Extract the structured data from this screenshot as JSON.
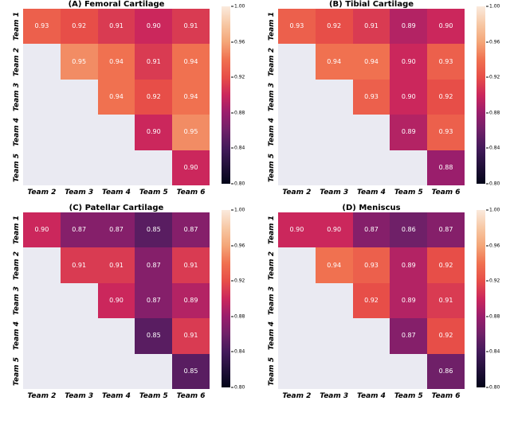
{
  "figure": {
    "background_color": "#ffffff",
    "empty_cell_color": "#EAEAF2",
    "cell_text_color": "#ffffff",
    "label_text_color": "#000000"
  },
  "colormap_stops": [
    {
      "v": 0.8,
      "c": "#030519"
    },
    {
      "v": 0.82,
      "c": "#22103A"
    },
    {
      "v": 0.84,
      "c": "#431A5A"
    },
    {
      "v": 0.86,
      "c": "#6F2068"
    },
    {
      "v": 0.88,
      "c": "#9A1E6C"
    },
    {
      "v": 0.9,
      "c": "#CB275C"
    },
    {
      "v": 0.92,
      "c": "#E74E48"
    },
    {
      "v": 0.94,
      "c": "#F07150"
    },
    {
      "v": 0.96,
      "c": "#F4A678"
    },
    {
      "v": 0.98,
      "c": "#F7C8A5"
    },
    {
      "v": 1.0,
      "c": "#FAEADD"
    }
  ],
  "chart_data": [
    {
      "type": "heatmap",
      "title": "(A) Femoral Cartilage",
      "x_categories": [
        "Team 2",
        "Team 3",
        "Team 4",
        "Team 5",
        "Team 6"
      ],
      "y_categories": [
        "Team 1",
        "Team 2",
        "Team 3",
        "Team 4",
        "Team 5"
      ],
      "values": [
        [
          0.93,
          0.92,
          0.91,
          0.9,
          0.91
        ],
        [
          null,
          0.95,
          0.94,
          0.91,
          0.94
        ],
        [
          null,
          null,
          0.94,
          0.92,
          0.94
        ],
        [
          null,
          null,
          null,
          0.9,
          0.95
        ],
        [
          null,
          null,
          null,
          null,
          0.9
        ]
      ],
      "colorbar": {
        "min": 0.8,
        "max": 1.0,
        "ticks": [
          "1.00",
          "0.96",
          "0.92",
          "0.88",
          "0.84",
          "0.80"
        ]
      }
    },
    {
      "type": "heatmap",
      "title": "(B) Tibial Cartilage",
      "x_categories": [
        "Team 2",
        "Team 3",
        "Team 4",
        "Team 5",
        "Team 6"
      ],
      "y_categories": [
        "Team 1",
        "Team 2",
        "Team 3",
        "Team 4",
        "Team 5"
      ],
      "values": [
        [
          0.93,
          0.92,
          0.91,
          0.89,
          0.9
        ],
        [
          null,
          0.94,
          0.94,
          0.9,
          0.93
        ],
        [
          null,
          null,
          0.93,
          0.9,
          0.92
        ],
        [
          null,
          null,
          null,
          0.89,
          0.93
        ],
        [
          null,
          null,
          null,
          null,
          0.88
        ]
      ],
      "colorbar": {
        "min": 0.8,
        "max": 1.0,
        "ticks": [
          "1.00",
          "0.96",
          "0.92",
          "0.88",
          "0.84",
          "0.80"
        ]
      }
    },
    {
      "type": "heatmap",
      "title": "(C) Patellar Cartilage",
      "x_categories": [
        "Team 2",
        "Team 3",
        "Team 4",
        "Team 5",
        "Team 6"
      ],
      "y_categories": [
        "Team 1",
        "Team 2",
        "Team 3",
        "Team 4",
        "Team 5"
      ],
      "values": [
        [
          0.9,
          0.87,
          0.87,
          0.85,
          0.87
        ],
        [
          null,
          0.91,
          0.91,
          0.87,
          0.91
        ],
        [
          null,
          null,
          0.9,
          0.87,
          0.89
        ],
        [
          null,
          null,
          null,
          0.85,
          0.91
        ],
        [
          null,
          null,
          null,
          null,
          0.85
        ]
      ],
      "colorbar": {
        "min": 0.8,
        "max": 1.0,
        "ticks": [
          "1.00",
          "0.96",
          "0.92",
          "0.88",
          "0.84",
          "0.80"
        ]
      }
    },
    {
      "type": "heatmap",
      "title": "(D) Meniscus",
      "x_categories": [
        "Team 2",
        "Team 3",
        "Team 4",
        "Team 5",
        "Team 6"
      ],
      "y_categories": [
        "Team 1",
        "Team 2",
        "Team 3",
        "Team 4",
        "Team 5"
      ],
      "values": [
        [
          0.9,
          0.9,
          0.87,
          0.86,
          0.87
        ],
        [
          null,
          0.94,
          0.93,
          0.89,
          0.92
        ],
        [
          null,
          null,
          0.92,
          0.89,
          0.91
        ],
        [
          null,
          null,
          null,
          0.87,
          0.92
        ],
        [
          null,
          null,
          null,
          null,
          0.86
        ]
      ],
      "colorbar": {
        "min": 0.8,
        "max": 1.0,
        "ticks": [
          "1.00",
          "0.96",
          "0.92",
          "0.88",
          "0.84",
          "0.80"
        ]
      }
    }
  ]
}
